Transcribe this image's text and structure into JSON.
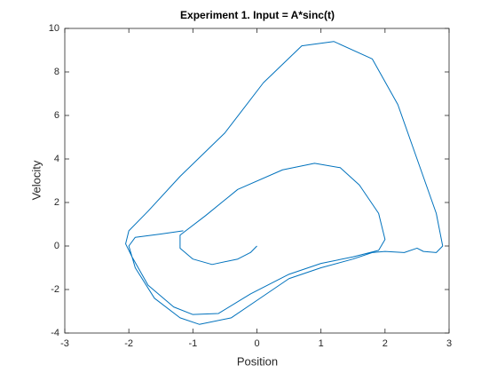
{
  "chart_data": {
    "type": "line",
    "title": "Experiment 1. Input = A*sinc(t)",
    "x_label": "Position",
    "y_label": "Velocity",
    "xlim": [
      -3,
      3
    ],
    "ylim": [
      -4,
      10
    ],
    "xticks": [
      -3,
      -2,
      -1,
      0,
      1,
      2,
      3
    ],
    "yticks": [
      -4,
      -2,
      0,
      2,
      4,
      6,
      8,
      10
    ],
    "series": [
      {
        "color": "#0072bd",
        "x": [
          -1.15,
          -1.5,
          -1.9,
          -2.0,
          -1.9,
          -1.6,
          -1.2,
          -0.9,
          -0.4,
          0,
          0.5,
          1.0,
          1.5,
          1.8,
          2.0,
          2.3,
          2.5,
          2.6,
          2.8,
          2.9,
          2.8,
          2.5,
          2.2,
          1.8,
          1.2,
          0.7,
          0.1,
          -0.5,
          -1.2,
          -1.7,
          -2.0,
          -2.05,
          -1.95,
          -1.7,
          -1.3,
          -1.0,
          -0.6,
          -0.1,
          0.5,
          1.0,
          1.5,
          1.9,
          2.0,
          1.9,
          1.6,
          1.3,
          0.9,
          0.4,
          -0.3,
          -0.8,
          -1.2,
          -1.2,
          -1.0,
          -0.7,
          -0.3,
          -0.1,
          0
        ],
        "values": [
          0.7,
          0.55,
          0.4,
          0.0,
          -1.0,
          -2.4,
          -3.3,
          -3.6,
          -3.3,
          -2.5,
          -1.5,
          -1.0,
          -0.6,
          -0.3,
          -0.25,
          -0.3,
          -0.1,
          -0.25,
          -0.3,
          0,
          1.5,
          4,
          6.5,
          8.6,
          9.4,
          9.2,
          7.5,
          5.2,
          3.2,
          1.6,
          0.7,
          0.1,
          -0.5,
          -1.8,
          -2.8,
          -3.15,
          -3.1,
          -2.2,
          -1.3,
          -0.8,
          -0.5,
          -0.2,
          0.3,
          1.5,
          2.8,
          3.6,
          3.8,
          3.5,
          2.6,
          1.4,
          0.5,
          -0.1,
          -0.6,
          -0.85,
          -0.6,
          -0.3,
          0
        ]
      }
    ]
  }
}
